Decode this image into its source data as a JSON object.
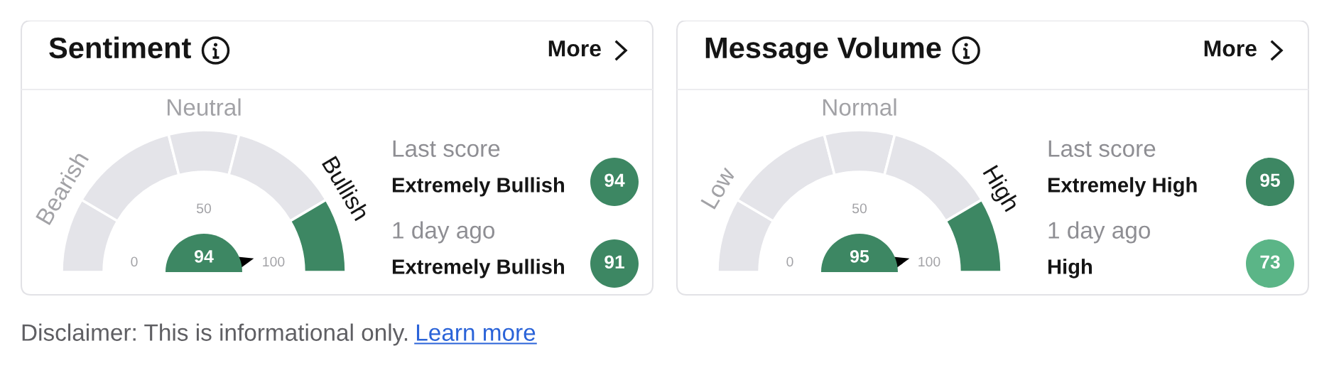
{
  "chart_data": [
    {
      "type": "donut",
      "title": "Sentiment",
      "annotations": [
        "More"
      ],
      "categories": [
        "Bearish",
        null,
        "Neutral",
        null,
        "Bullish"
      ],
      "values": [
        17,
        25,
        16,
        25,
        17
      ],
      "colors": [
        "#e4e4e9",
        "#e4e4e9",
        "#e4e4e9",
        "#e4e4e9",
        "#3d8763"
      ],
      "needle": "Bullish"
    },
    {
      "type": "other",
      "values": [
        94
      ],
      "data_labels": true,
      "annotations": [
        "0",
        "50",
        "100"
      ]
    },
    {
      "type": "other",
      "categories": [
        "Extremely Bullish",
        "Extremely Bullish"
      ],
      "values": [
        94,
        91
      ],
      "colors": [
        "#3d8763",
        "#3d8763"
      ],
      "data_labels": true,
      "annotations": [
        "Last score",
        "1 day ago"
      ]
    },
    {
      "type": "donut",
      "title": "Message Volume",
      "annotations": [
        "More"
      ],
      "categories": [
        "Low",
        null,
        "Normal",
        null,
        "High"
      ],
      "values": [
        17,
        25,
        16,
        25,
        17
      ],
      "colors": [
        "#e4e4e9",
        "#e4e4e9",
        "#e4e4e9",
        "#e4e4e9",
        "#3d8763"
      ],
      "needle": "High"
    },
    {
      "type": "other",
      "values": [
        95
      ],
      "data_labels": true,
      "annotations": [
        "0",
        "50",
        "100"
      ]
    },
    {
      "type": "other",
      "categories": [
        "Extremely High",
        "High"
      ],
      "values": [
        95,
        73
      ],
      "colors": [
        "#3d8763",
        "#5bb587"
      ],
      "data_labels": true,
      "annotations": [
        "Last score",
        "1 day ago"
      ]
    },
    {
      "type": "other",
      "annotations": [
        "Disclaimer: This is informational only.",
        "Learn more"
      ]
    }
  ]
}
